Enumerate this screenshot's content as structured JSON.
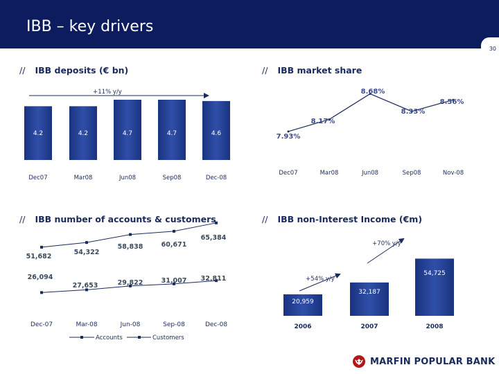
{
  "page": {
    "title": "IBB – key drivers",
    "page_number": "30",
    "slashes": "//"
  },
  "colors": {
    "header": "#0d1c5e",
    "bar": "#1f3a8a",
    "accent_red": "#b01818",
    "text": "#1a2a5c"
  },
  "logo": {
    "text": "MARFIN POPULAR BANK",
    "icon": "bull-emblem-icon"
  },
  "chart_data": [
    {
      "id": "deposits",
      "type": "bar",
      "title": "IBB deposits (€ bn)",
      "categories": [
        "Dec07",
        "Mar08",
        "Jun08",
        "Sep08",
        "Dec-08"
      ],
      "values": [
        4.2,
        4.2,
        4.7,
        4.7,
        4.6
      ],
      "value_labels": [
        "4.2",
        "4.2",
        "4.7",
        "4.7",
        "4.6"
      ],
      "annotation": "+11% y/y",
      "ylim": [
        0,
        4.7
      ]
    },
    {
      "id": "market_share",
      "type": "line",
      "title": "IBB market share",
      "categories": [
        "Dec07",
        "Mar08",
        "Jun08",
        "Sep08",
        "Nov-08"
      ],
      "values": [
        7.93,
        8.17,
        8.68,
        8.33,
        8.56
      ],
      "value_labels": [
        "7.93%",
        "8.17%",
        "8.68%",
        "8.33%",
        "8.56%"
      ],
      "ylim": [
        7.9,
        8.7
      ]
    },
    {
      "id": "accounts",
      "type": "line",
      "title": "IBB number of accounts & customers",
      "categories": [
        "Dec-07",
        "Mar-08",
        "Jun-08",
        "Sep-08",
        "Dec-08"
      ],
      "series": [
        {
          "name": "Accounts",
          "values": [
            51682,
            54322,
            58838,
            60671,
            65384
          ],
          "labels": [
            "51,682",
            "54,322",
            "58,838",
            "60,671",
            "65,384"
          ]
        },
        {
          "name": "Customers",
          "values": [
            26094,
            27653,
            29822,
            31007,
            32811
          ],
          "labels": [
            "26,094",
            "27,653",
            "29,822",
            "31,007",
            "32,811"
          ]
        }
      ],
      "legend": "bottom"
    },
    {
      "id": "income",
      "type": "bar",
      "title": "IBB non-Interest Income (€m)",
      "categories": [
        "2006",
        "2007",
        "2008"
      ],
      "values": [
        20.959,
        32.187,
        54.725
      ],
      "value_labels": [
        "20,959",
        "32,187",
        "54,725"
      ],
      "annotations": [
        "+70% y/y",
        "+54% y/y"
      ],
      "ylim": [
        0,
        55
      ]
    }
  ]
}
